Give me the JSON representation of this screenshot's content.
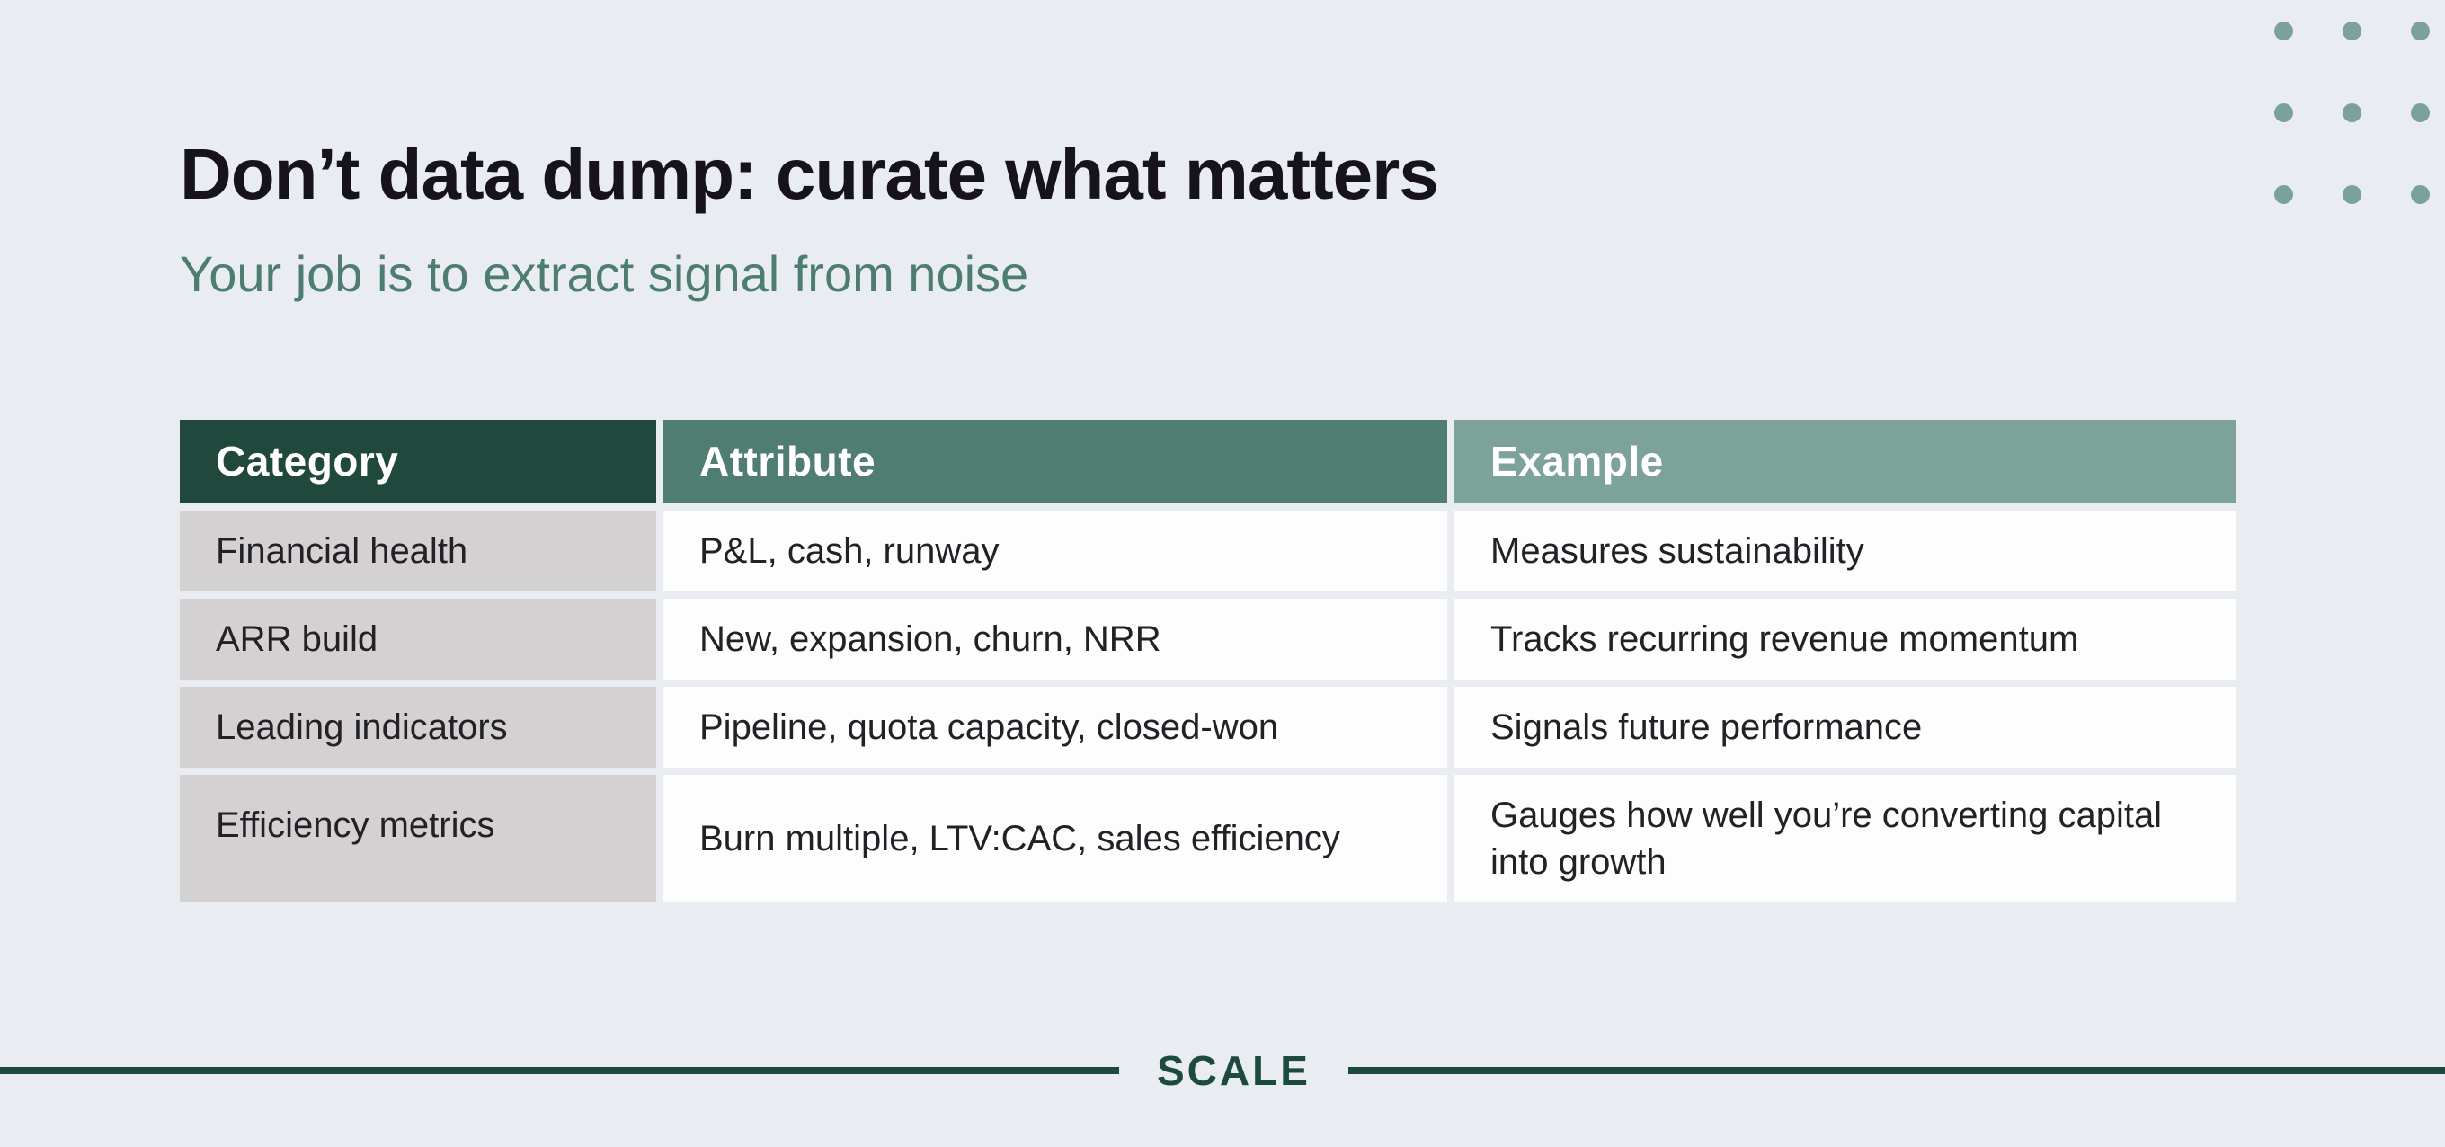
{
  "header": {
    "title": "Don’t data dump: curate what matters",
    "subtitle": "Your job is to extract signal from noise"
  },
  "table": {
    "headers": [
      {
        "label": "Category"
      },
      {
        "label": "Attribute"
      },
      {
        "label": "Example"
      }
    ],
    "rows": [
      {
        "category": "Financial health",
        "attribute": "P&L, cash, runway",
        "example": "Measures sustainability"
      },
      {
        "category": "ARR build",
        "attribute": "New, expansion, churn, NRR",
        "example": "Tracks recurring revenue momentum"
      },
      {
        "category": "Leading indicators",
        "attribute": "Pipeline, quota capacity, closed-won",
        "example": "Signals future performance"
      },
      {
        "category": "Efficiency metrics",
        "attribute": "Burn multiple, LTV:CAC, sales efficiency",
        "example": "Gauges how well you’re converting capital into growth"
      }
    ]
  },
  "footer": {
    "brand": "SCALE"
  },
  "colors": {
    "background": "#e9edf1",
    "title_text": "#16141a",
    "subtitle_text": "#4d7c71",
    "header_category_bg": "#21483c",
    "header_attribute_bg": "#4f7d71",
    "header_example_bg": "#7da29a",
    "category_cell_bg": "#d4d1d3",
    "data_cell_bg": "#fdfdfe",
    "body_text": "#232126",
    "brand_green": "#1d4a3e",
    "dot_color": "#7aa19a"
  }
}
